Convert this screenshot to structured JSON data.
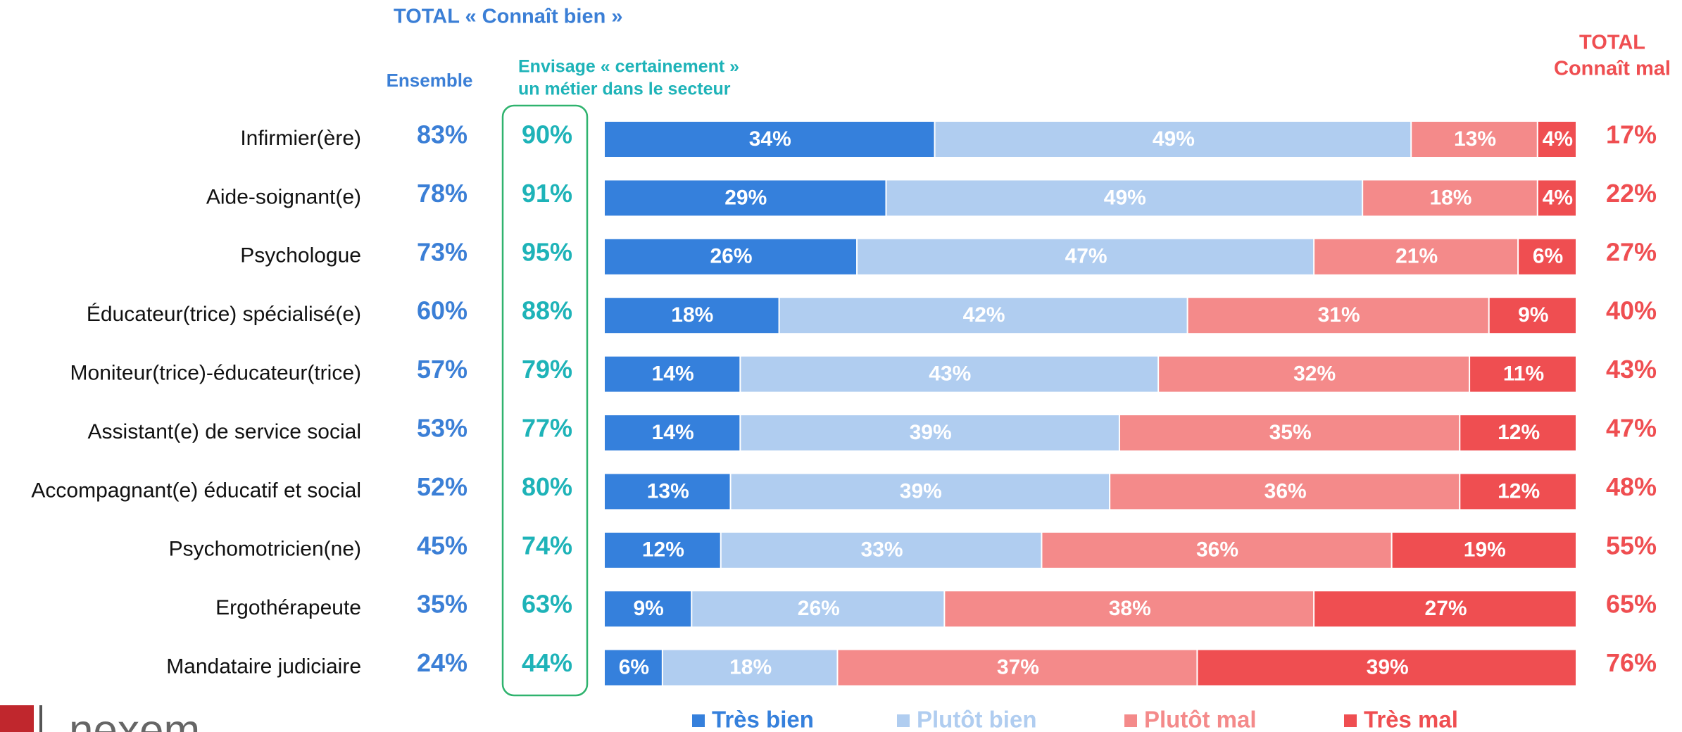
{
  "chart_data": {
    "type": "bar",
    "orientation": "horizontal",
    "stacked": true,
    "header": "TOTAL « Connaît bien »",
    "categories": [
      "Infirmier(ère)",
      "Aide-soignant(e)",
      "Psychologue",
      "Éducateur(trice) spécialisé(e)",
      "Moniteur(trice)-éducateur(trice)",
      "Assistant(e) de service social",
      "Accompagnant(e) éducatif et social",
      "Psychomotricien(ne)",
      "Ergothérapeute",
      "Mandataire judiciaire"
    ],
    "xlim": [
      0,
      100
    ],
    "series": [
      {
        "name": "Très bien",
        "color": "#3580dc",
        "values": [
          34,
          29,
          26,
          18,
          14,
          14,
          13,
          12,
          9,
          6
        ],
        "value_labels": [
          "34%",
          "29%",
          "26%",
          "18%",
          "14%",
          "14%",
          "13%",
          "12%",
          "9%",
          "6%"
        ]
      },
      {
        "name": "Plutôt bien",
        "color": "#b0cdf0",
        "values": [
          49,
          49,
          47,
          42,
          43,
          39,
          39,
          33,
          26,
          18
        ],
        "value_labels": [
          "49%",
          "49%",
          "47%",
          "42%",
          "43%",
          "39%",
          "39%",
          "33%",
          "26%",
          "18%"
        ]
      },
      {
        "name": "Plutôt mal",
        "color": "#f48a8a",
        "values": [
          13,
          18,
          21,
          31,
          32,
          35,
          36,
          36,
          38,
          37
        ],
        "value_labels": [
          "13%",
          "18%",
          "21%",
          "31%",
          "32%",
          "35%",
          "36%",
          "36%",
          "38%",
          "37%"
        ]
      },
      {
        "name": "Très mal",
        "color": "#ef4e51",
        "values": [
          4,
          4,
          6,
          9,
          11,
          12,
          12,
          19,
          27,
          39
        ],
        "value_labels": [
          "4%",
          "4%",
          "6%",
          "9%",
          "11%",
          "12%",
          "12%",
          "19%",
          "27%",
          "39%"
        ]
      }
    ],
    "columns": [
      {
        "title": [
          "Ensemble"
        ],
        "color": "#3b7fd6",
        "values": [
          83,
          78,
          73,
          60,
          57,
          53,
          52,
          45,
          35,
          24
        ],
        "value_labels": [
          "83%",
          "78%",
          "73%",
          "60%",
          "57%",
          "53%",
          "52%",
          "45%",
          "35%",
          "24%"
        ]
      },
      {
        "title": [
          "Envisage « certainement »",
          "un métier dans le secteur"
        ],
        "color": "#1eb3b8",
        "values": [
          90,
          91,
          95,
          88,
          79,
          77,
          80,
          74,
          63,
          44
        ],
        "value_labels": [
          "90%",
          "91%",
          "95%",
          "88%",
          "79%",
          "77%",
          "80%",
          "74%",
          "63%",
          "44%"
        ]
      },
      {
        "title": [
          "TOTAL",
          "Connaît mal"
        ],
        "color": "#ef4e51",
        "values": [
          17,
          22,
          27,
          40,
          43,
          47,
          48,
          55,
          65,
          76
        ],
        "value_labels": [
          "17%",
          "22%",
          "27%",
          "40%",
          "43%",
          "47%",
          "48%",
          "55%",
          "65%",
          "76%"
        ]
      }
    ],
    "logo": "nexem"
  }
}
